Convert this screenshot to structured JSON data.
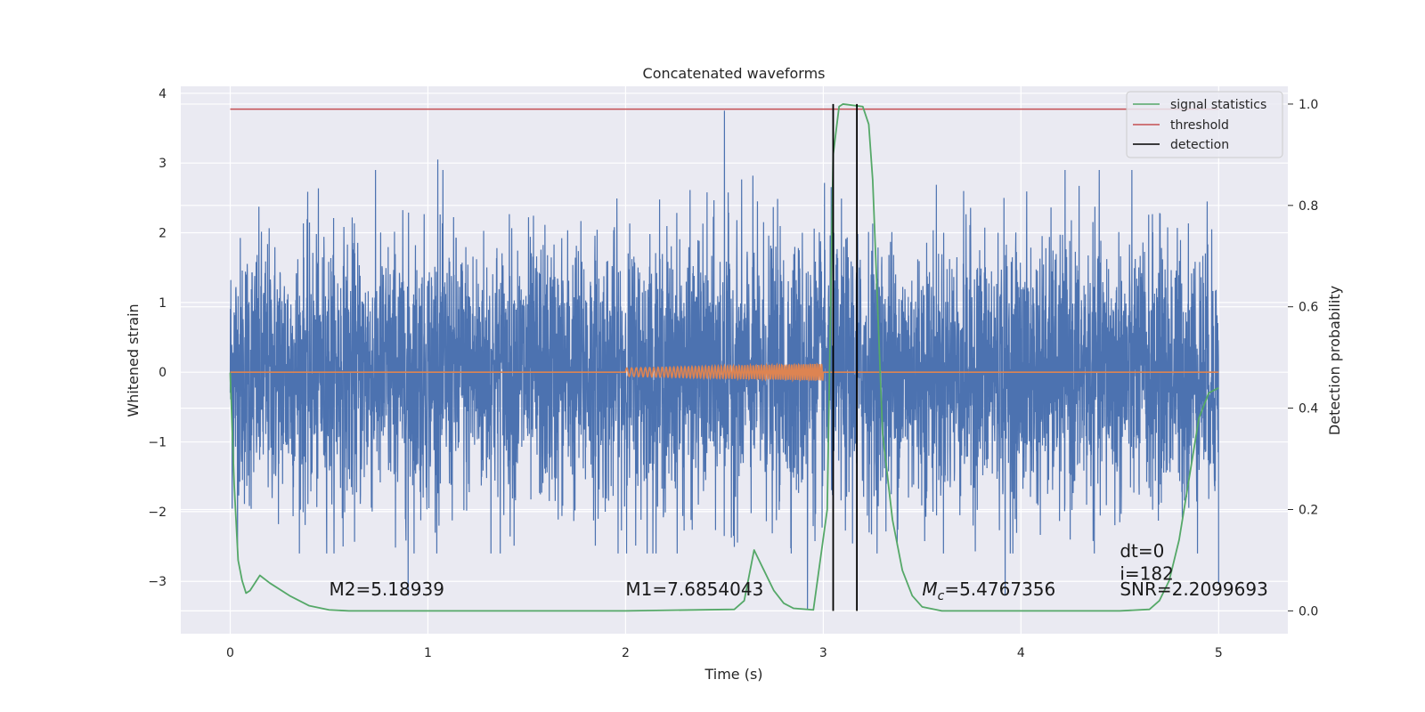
{
  "chart_data": {
    "type": "line",
    "title": "Concatenated waveforms",
    "xlabel": "Time (s)",
    "ylabel_left": "Whitened strain",
    "ylabel_right": "Detection probability",
    "xlim": [
      -0.25,
      5.35
    ],
    "ylim_left": [
      -3.75,
      4.1
    ],
    "ylim_right": [
      -0.045,
      1.035
    ],
    "x_ticks": [
      0,
      1,
      2,
      3,
      4,
      5
    ],
    "x_tick_labels": [
      "0",
      "1",
      "2",
      "3",
      "4",
      "5"
    ],
    "y_left_ticks": [
      -3,
      -2,
      -1,
      0,
      1,
      2,
      3,
      4
    ],
    "y_left_tick_labels": [
      "−3",
      "−2",
      "−1",
      "0",
      "1",
      "2",
      "3",
      "4"
    ],
    "y_right_ticks": [
      0.0,
      0.2,
      0.4,
      0.6,
      0.8,
      1.0
    ],
    "y_right_tick_labels": [
      "0.0",
      "0.2",
      "0.4",
      "0.6",
      "0.8",
      "1.0"
    ],
    "grid": true,
    "legend_position": "top-right",
    "series": [
      {
        "name": "",
        "axis": "left",
        "color": "#4c72b0",
        "kind": "noisy strain",
        "x_range": [
          0,
          5
        ],
        "typical_envelope": [
          -2.0,
          2.0
        ],
        "extremes": [
          [
            2.5,
            3.75
          ],
          [
            1.05,
            3.05
          ],
          [
            0.9,
            -3.2
          ],
          [
            2.92,
            -3.4
          ],
          [
            3.92,
            -3.2
          ],
          [
            5.0,
            -3.05
          ]
        ]
      },
      {
        "name": "",
        "axis": "left",
        "color": "#dd8452",
        "kind": "injected chirp",
        "x": [
          0,
          2.0,
          2.0,
          3.0,
          3.0,
          5.0
        ],
        "y": [
          0,
          0,
          0.05,
          0.12,
          0,
          0
        ],
        "chirp_start": 2.0,
        "chirp_end": 3.0
      },
      {
        "name": "signal statistics",
        "axis": "right",
        "color": "#55a868",
        "x": [
          0.0,
          0.02,
          0.04,
          0.06,
          0.08,
          0.1,
          0.15,
          0.2,
          0.3,
          0.4,
          0.5,
          0.6,
          1.0,
          2.0,
          2.55,
          2.6,
          2.65,
          2.7,
          2.75,
          2.8,
          2.85,
          2.95,
          3.02,
          3.05,
          3.08,
          3.1,
          3.2,
          3.23,
          3.25,
          3.28,
          3.3,
          3.35,
          3.4,
          3.45,
          3.5,
          3.6,
          4.0,
          4.5,
          4.65,
          4.7,
          4.75,
          4.8,
          4.85,
          4.9,
          4.95,
          5.0
        ],
        "y": [
          0.47,
          0.25,
          0.1,
          0.06,
          0.035,
          0.04,
          0.07,
          0.055,
          0.03,
          0.01,
          0.002,
          0.0,
          0.0,
          0.0,
          0.003,
          0.02,
          0.12,
          0.08,
          0.04,
          0.015,
          0.005,
          0.002,
          0.2,
          0.9,
          0.995,
          1.0,
          0.995,
          0.96,
          0.85,
          0.55,
          0.35,
          0.18,
          0.08,
          0.03,
          0.008,
          0.0,
          0.0,
          0.0,
          0.003,
          0.02,
          0.06,
          0.14,
          0.26,
          0.38,
          0.43,
          0.44
        ]
      },
      {
        "name": "threshold",
        "axis": "right",
        "color": "#c44e52",
        "x": [
          0,
          5
        ],
        "y": [
          0.99,
          0.99
        ]
      },
      {
        "name": "detection",
        "axis": "right",
        "color": "#000000",
        "vlines": [
          3.05,
          3.17
        ],
        "ymin": 0.0,
        "ymax": 1.0
      }
    ],
    "annotations": [
      {
        "text": "M2=5.18939",
        "x": 0.5,
        "y": -3.2
      },
      {
        "text": "M1=7.6854043",
        "x": 2.0,
        "y": -3.2
      },
      {
        "text_main": "M",
        "text_sub": "c",
        "text_rest": "=5.4767356",
        "x": 3.5,
        "y": -3.2
      },
      {
        "text": "SNR=2.2099693",
        "x": 4.5,
        "y": -3.2
      },
      {
        "text": "i=182",
        "x": 4.5,
        "y": -2.98
      },
      {
        "text": "dt=0",
        "x": 4.5,
        "y": -2.65
      }
    ]
  }
}
